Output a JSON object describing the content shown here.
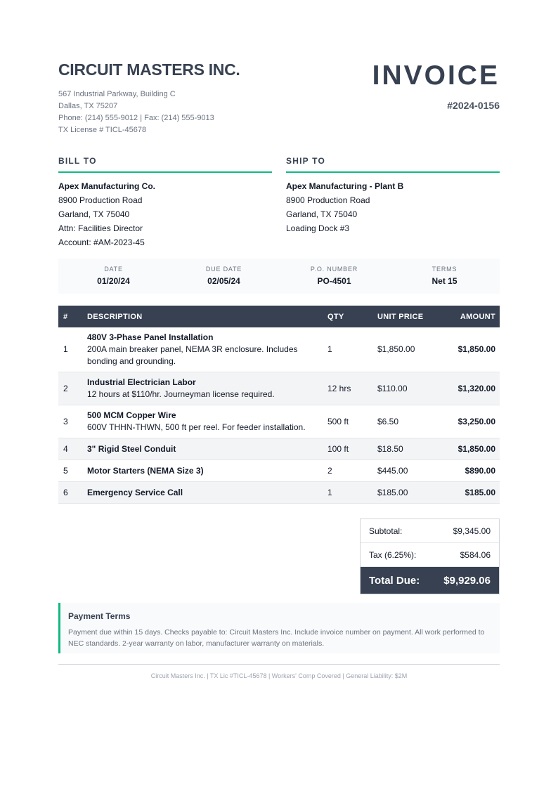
{
  "company": {
    "name": "CIRCUIT MASTERS INC.",
    "address": [
      "567 Industrial Parkway, Building C",
      "Dallas, TX 75207",
      "Phone: (214) 555-9012 | Fax: (214) 555-9013",
      "TX License # TICL-45678"
    ]
  },
  "invoice": {
    "title": "INVOICE",
    "number": "#2024-0156"
  },
  "bill_to": {
    "heading": "BILL TO",
    "lines": [
      "Apex Manufacturing Co.",
      "8900 Production Road",
      "Garland, TX 75040",
      "Attn: Facilities Director",
      "Account: #AM-2023-45"
    ]
  },
  "ship_to": {
    "heading": "SHIP TO",
    "lines": [
      "Apex Manufacturing - Plant B",
      "8900 Production Road",
      "Garland, TX 75040",
      "Loading Dock #3"
    ]
  },
  "info": [
    {
      "label": "DATE",
      "value": "01/20/24"
    },
    {
      "label": "DUE DATE",
      "value": "02/05/24"
    },
    {
      "label": "P.O. NUMBER",
      "value": "PO-4501"
    },
    {
      "label": "TERMS",
      "value": "Net 15"
    }
  ],
  "table": {
    "headers": [
      "#",
      "DESCRIPTION",
      "QTY",
      "UNIT PRICE",
      "AMOUNT"
    ],
    "rows": [
      {
        "n": "1",
        "title": "480V 3-Phase Panel Installation",
        "desc": "200A main breaker panel, NEMA 3R enclosure. Includes bonding and grounding.",
        "qty": "1",
        "unit": "$1,850.00",
        "amount": "$1,850.00"
      },
      {
        "n": "2",
        "title": "Industrial Electrician Labor",
        "desc": "12 hours at $110/hr. Journeyman license required.",
        "qty": "12 hrs",
        "unit": "$110.00",
        "amount": "$1,320.00"
      },
      {
        "n": "3",
        "title": "500 MCM Copper Wire",
        "desc": "600V THHN-THWN, 500 ft per reel. For feeder installation.",
        "qty": "500 ft",
        "unit": "$6.50",
        "amount": "$3,250.00"
      },
      {
        "n": "4",
        "title": "3\" Rigid Steel Conduit",
        "desc": "",
        "qty": "100 ft",
        "unit": "$18.50",
        "amount": "$1,850.00"
      },
      {
        "n": "5",
        "title": "Motor Starters (NEMA Size 3)",
        "desc": "",
        "qty": "2",
        "unit": "$445.00",
        "amount": "$890.00"
      },
      {
        "n": "6",
        "title": "Emergency Service Call",
        "desc": "",
        "qty": "1",
        "unit": "$185.00",
        "amount": "$185.00"
      }
    ]
  },
  "totals": {
    "subtotal_label": "Subtotal:",
    "subtotal": "$9,345.00",
    "tax_label": "Tax (6.25%):",
    "tax": "$584.06",
    "total_label": "Total Due:",
    "total": "$9,929.06"
  },
  "terms": {
    "heading": "Payment Terms",
    "text": "Payment due within 15 days. Checks payable to: Circuit Masters Inc. Include invoice number on payment. All work performed to NEC standards. 2-year warranty on labor, manufacturer warranty on materials."
  },
  "footer": "Circuit Masters Inc. | TX Lic #TICL-45678 | Workers' Comp Covered | General Liability: $2M",
  "colors": {
    "primary": "#374151",
    "accent": "#10b981"
  }
}
